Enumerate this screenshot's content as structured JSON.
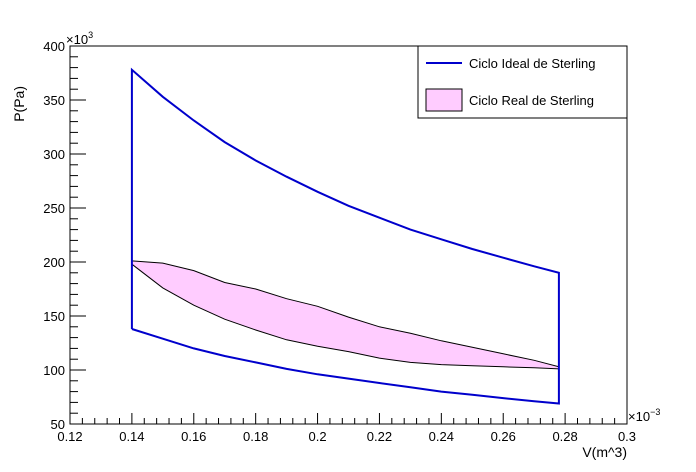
{
  "chart_data": {
    "type": "line",
    "xlabel": "V(m^3)",
    "ylabel": "P(Pa)",
    "x_exponent_label": "×10",
    "x_exponent": "−3",
    "y_exponent_label": "×10",
    "y_exponent": "3",
    "xlim": [
      0.12,
      0.3
    ],
    "ylim": [
      50,
      400
    ],
    "x_ticks": [
      0.12,
      0.14,
      0.16,
      0.18,
      0.2,
      0.22,
      0.24,
      0.26,
      0.28,
      0.3
    ],
    "x_tick_labels": [
      "0.12",
      "0.14",
      "0.16",
      "0.18",
      "0.2",
      "0.22",
      "0.24",
      "0.26",
      "0.28",
      "0.3"
    ],
    "y_ticks": [
      50,
      100,
      150,
      200,
      250,
      300,
      350,
      400
    ],
    "y_tick_labels": [
      "50",
      "100",
      "150",
      "200",
      "250",
      "300",
      "350",
      "400"
    ],
    "grid": false,
    "legend_position": "top-right",
    "colors": {
      "ideal": "#0000cc",
      "real_fill": "#ffccff",
      "real_line": "#000000"
    },
    "series": [
      {
        "name": "Ciclo Ideal de Sterling",
        "kind": "line",
        "x": [
          0.14,
          0.14,
          0.15,
          0.16,
          0.17,
          0.18,
          0.19,
          0.2,
          0.21,
          0.22,
          0.23,
          0.24,
          0.25,
          0.26,
          0.27,
          0.278,
          0.278,
          0.27,
          0.26,
          0.25,
          0.24,
          0.23,
          0.22,
          0.21,
          0.2,
          0.19,
          0.18,
          0.17,
          0.16,
          0.15,
          0.14
        ],
        "y": [
          138,
          378,
          353,
          331,
          311,
          294,
          279,
          265,
          252,
          241,
          230,
          221,
          212,
          204,
          196,
          190,
          69,
          71,
          74,
          77,
          80,
          84,
          88,
          92,
          96,
          101,
          107,
          113,
          120,
          129,
          138
        ]
      },
      {
        "name": "Ciclo Real de Sterling",
        "kind": "filled-area",
        "x": [
          0.14,
          0.15,
          0.16,
          0.17,
          0.18,
          0.19,
          0.2,
          0.21,
          0.22,
          0.23,
          0.24,
          0.25,
          0.26,
          0.27,
          0.278,
          0.278,
          0.27,
          0.26,
          0.25,
          0.24,
          0.23,
          0.22,
          0.21,
          0.2,
          0.19,
          0.18,
          0.17,
          0.16,
          0.15,
          0.14
        ],
        "y": [
          201,
          199,
          192,
          181,
          175,
          166,
          159,
          149,
          140,
          134,
          127,
          121,
          115,
          109,
          103,
          101,
          102,
          103,
          104,
          105,
          107,
          111,
          117,
          122,
          128,
          137,
          147,
          160,
          176,
          198
        ]
      }
    ]
  }
}
